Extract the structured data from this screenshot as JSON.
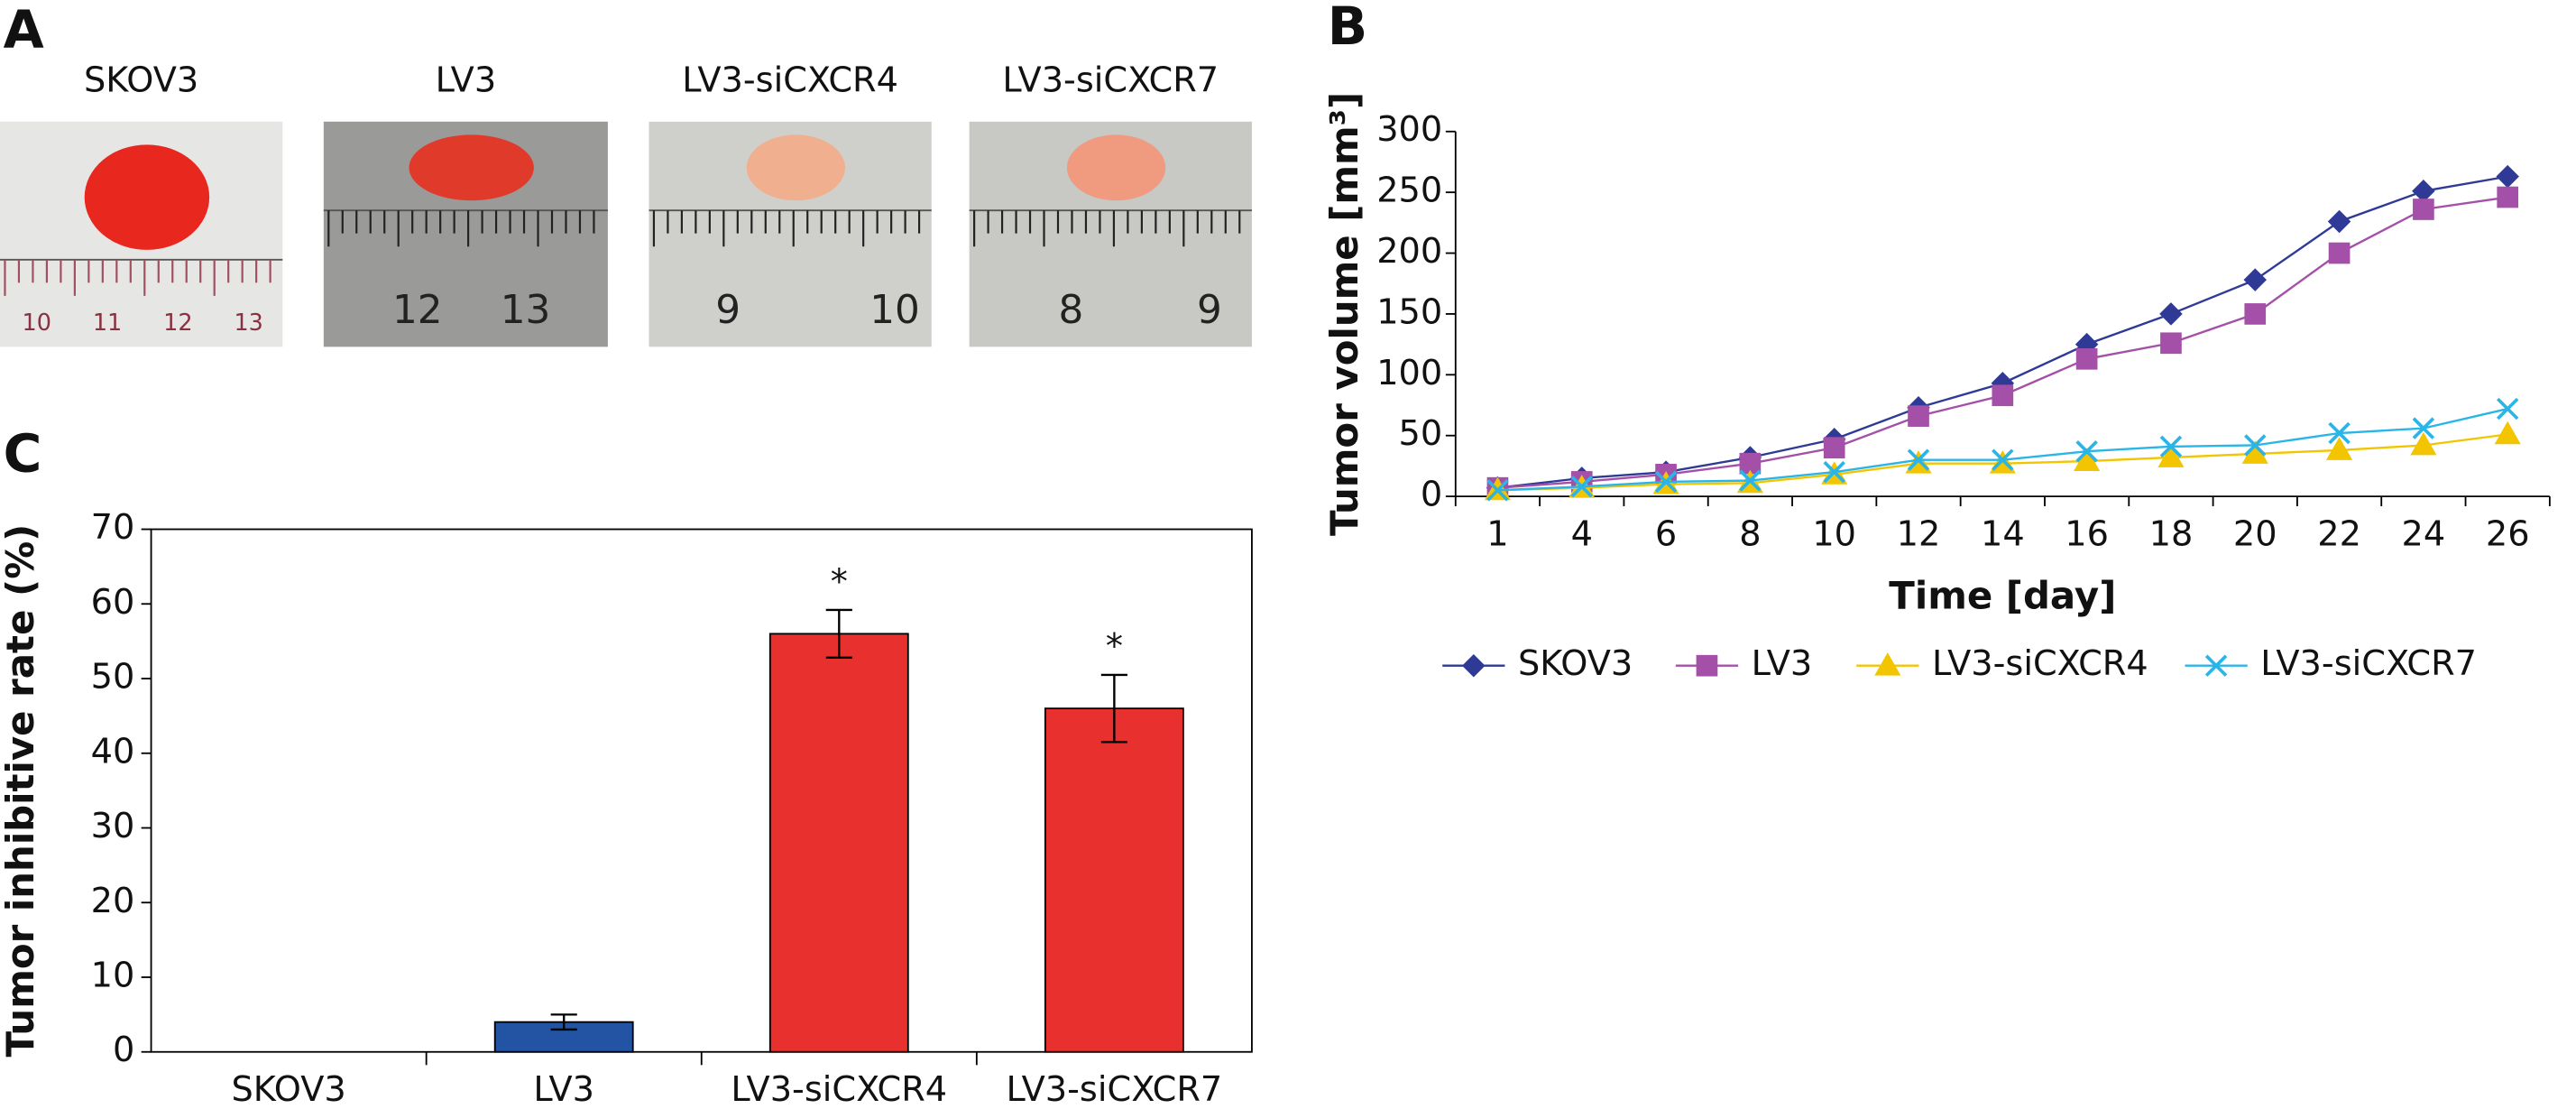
{
  "photo_panel": {
    "panel_label": "A",
    "photos": [
      {
        "caption": "SKOV3",
        "ruler_labels": [
          "10",
          "11",
          "12",
          "13"
        ]
      },
      {
        "caption": "LV3",
        "ruler_labels": [
          "12",
          "13"
        ]
      },
      {
        "caption": "LV3-siCXCR4",
        "ruler_labels": [
          "9",
          "10"
        ]
      },
      {
        "caption": "LV3-siCXCR7",
        "ruler_labels": [
          "8",
          "9"
        ]
      }
    ]
  },
  "chart_data": [
    {
      "type": "line",
      "panel_label": "B",
      "x_label": "Time [day]",
      "y_label": "Tumor volume [mm³]",
      "categories": [
        1,
        4,
        6,
        8,
        10,
        12,
        14,
        16,
        18,
        20,
        22,
        24,
        26
      ],
      "series": [
        {
          "name": "SKOV3",
          "color": "#2e3a96",
          "marker": "diamond",
          "values": [
            7,
            15,
            20,
            32,
            47,
            73,
            93,
            125,
            150,
            178,
            226,
            251,
            263
          ]
        },
        {
          "name": "LV3",
          "color": "#a450a8",
          "marker": "square",
          "values": [
            7,
            12,
            18,
            27,
            40,
            66,
            83,
            113,
            126,
            150,
            200,
            236,
            246
          ]
        },
        {
          "name": "LV3-siCXCR4",
          "color": "#f2c500",
          "marker": "triangle",
          "values": [
            5,
            7,
            10,
            11,
            18,
            27,
            27,
            29,
            32,
            35,
            38,
            42,
            51
          ]
        },
        {
          "name": "LV3-siCXCR7",
          "color": "#29b5e8",
          "marker": "x",
          "values": [
            5,
            8,
            12,
            13,
            20,
            30,
            30,
            37,
            41,
            42,
            52,
            56,
            72
          ]
        }
      ],
      "ylim": [
        0,
        300
      ],
      "yticks": [
        0,
        50,
        100,
        150,
        200,
        250,
        300
      ],
      "legend": "bottom"
    },
    {
      "type": "bar",
      "panel_label": "C",
      "y_label": "Tumor inhibitive rate (%)",
      "categories": [
        "SKOV3",
        "LV3",
        "LV3-siCXCR4",
        "LV3-siCXCR7"
      ],
      "values": [
        0,
        4,
        56,
        46
      ],
      "errors": [
        0,
        1,
        3.2,
        4.5
      ],
      "colors": [
        "#2353a3",
        "#2353a3",
        "#e8312f",
        "#e8312f"
      ],
      "significance": [
        null,
        null,
        "*",
        "*"
      ],
      "ylim": [
        0,
        70
      ],
      "yticks": [
        0,
        10,
        20,
        30,
        40,
        50,
        60,
        70
      ]
    }
  ]
}
